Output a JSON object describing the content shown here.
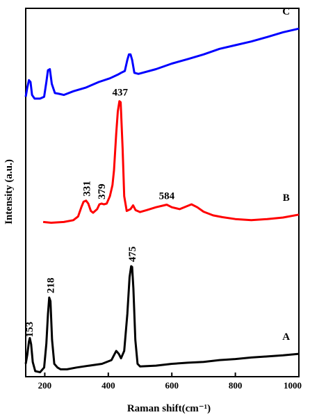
{
  "chart_data": {
    "type": "line",
    "xlabel": "Raman shift(cm⁻¹)",
    "ylabel": "Intensity (a.u.)",
    "xlim": [
      140,
      1000
    ],
    "ylim": [
      0,
      1
    ],
    "x_ticks": [
      "200",
      "400",
      "600",
      "800",
      "1000"
    ],
    "y_ticks": [],
    "grid": false,
    "legend": "none",
    "series": [
      {
        "name": "A",
        "color": "#000000",
        "points": [
          [
            140,
            0.035
          ],
          [
            145,
            0.06
          ],
          [
            150,
            0.095
          ],
          [
            153,
            0.105
          ],
          [
            157,
            0.088
          ],
          [
            162,
            0.04
          ],
          [
            170,
            0.015
          ],
          [
            185,
            0.012
          ],
          [
            198,
            0.025
          ],
          [
            205,
            0.09
          ],
          [
            210,
            0.17
          ],
          [
            214,
            0.215
          ],
          [
            218,
            0.205
          ],
          [
            223,
            0.1
          ],
          [
            230,
            0.035
          ],
          [
            240,
            0.025
          ],
          [
            250,
            0.02
          ],
          [
            270,
            0.02
          ],
          [
            300,
            0.025
          ],
          [
            340,
            0.03
          ],
          [
            380,
            0.035
          ],
          [
            410,
            0.045
          ],
          [
            425,
            0.07
          ],
          [
            433,
            0.062
          ],
          [
            440,
            0.05
          ],
          [
            450,
            0.07
          ],
          [
            460,
            0.17
          ],
          [
            467,
            0.27
          ],
          [
            472,
            0.3
          ],
          [
            475,
            0.298
          ],
          [
            479,
            0.24
          ],
          [
            485,
            0.1
          ],
          [
            492,
            0.035
          ],
          [
            500,
            0.028
          ],
          [
            550,
            0.03
          ],
          [
            600,
            0.035
          ],
          [
            650,
            0.038
          ],
          [
            700,
            0.04
          ],
          [
            750,
            0.045
          ],
          [
            800,
            0.048
          ],
          [
            850,
            0.052
          ],
          [
            900,
            0.055
          ],
          [
            950,
            0.058
          ],
          [
            1000,
            0.062
          ]
        ]
      },
      {
        "name": "B",
        "color": "#ff0000",
        "points": [
          [
            195,
            0.42
          ],
          [
            220,
            0.418
          ],
          [
            260,
            0.42
          ],
          [
            290,
            0.425
          ],
          [
            305,
            0.435
          ],
          [
            315,
            0.46
          ],
          [
            322,
            0.475
          ],
          [
            330,
            0.478
          ],
          [
            337,
            0.47
          ],
          [
            345,
            0.45
          ],
          [
            352,
            0.445
          ],
          [
            365,
            0.455
          ],
          [
            372,
            0.468
          ],
          [
            379,
            0.47
          ],
          [
            386,
            0.468
          ],
          [
            395,
            0.47
          ],
          [
            405,
            0.49
          ],
          [
            413,
            0.52
          ],
          [
            418,
            0.56
          ],
          [
            425,
            0.66
          ],
          [
            430,
            0.72
          ],
          [
            435,
            0.748
          ],
          [
            439,
            0.745
          ],
          [
            445,
            0.62
          ],
          [
            450,
            0.49
          ],
          [
            458,
            0.45
          ],
          [
            470,
            0.455
          ],
          [
            478,
            0.465
          ],
          [
            486,
            0.452
          ],
          [
            500,
            0.447
          ],
          [
            520,
            0.452
          ],
          [
            550,
            0.46
          ],
          [
            575,
            0.465
          ],
          [
            584,
            0.467
          ],
          [
            600,
            0.46
          ],
          [
            625,
            0.455
          ],
          [
            645,
            0.462
          ],
          [
            662,
            0.468
          ],
          [
            680,
            0.46
          ],
          [
            700,
            0.448
          ],
          [
            730,
            0.438
          ],
          [
            760,
            0.433
          ],
          [
            800,
            0.428
          ],
          [
            850,
            0.425
          ],
          [
            900,
            0.428
          ],
          [
            950,
            0.432
          ],
          [
            1000,
            0.44
          ]
        ]
      },
      {
        "name": "C",
        "color": "#0000ff",
        "points": [
          [
            140,
            0.76
          ],
          [
            145,
            0.785
          ],
          [
            150,
            0.805
          ],
          [
            155,
            0.8
          ],
          [
            160,
            0.765
          ],
          [
            168,
            0.755
          ],
          [
            185,
            0.755
          ],
          [
            198,
            0.76
          ],
          [
            205,
            0.8
          ],
          [
            210,
            0.832
          ],
          [
            216,
            0.835
          ],
          [
            222,
            0.795
          ],
          [
            232,
            0.77
          ],
          [
            245,
            0.768
          ],
          [
            260,
            0.765
          ],
          [
            290,
            0.775
          ],
          [
            330,
            0.785
          ],
          [
            370,
            0.8
          ],
          [
            405,
            0.81
          ],
          [
            430,
            0.82
          ],
          [
            440,
            0.825
          ],
          [
            452,
            0.83
          ],
          [
            460,
            0.86
          ],
          [
            465,
            0.875
          ],
          [
            470,
            0.875
          ],
          [
            475,
            0.86
          ],
          [
            482,
            0.825
          ],
          [
            495,
            0.822
          ],
          [
            550,
            0.835
          ],
          [
            600,
            0.85
          ],
          [
            650,
            0.862
          ],
          [
            700,
            0.875
          ],
          [
            750,
            0.89
          ],
          [
            800,
            0.9
          ],
          [
            850,
            0.91
          ],
          [
            900,
            0.922
          ],
          [
            950,
            0.935
          ],
          [
            1000,
            0.945
          ]
        ]
      }
    ],
    "series_labels": [
      "A",
      "B",
      "C"
    ],
    "annotations": [
      {
        "text": "153",
        "x": 153,
        "y": 0.105
      },
      {
        "text": "218",
        "x": 218,
        "y": 0.215
      },
      {
        "text": "475",
        "x": 475,
        "y": 0.3
      },
      {
        "text": "331",
        "x": 331,
        "y": 0.478
      },
      {
        "text": "379",
        "x": 379,
        "y": 0.47
      },
      {
        "text": "437",
        "x": 437,
        "y": 0.748
      },
      {
        "text": "584",
        "x": 584,
        "y": 0.467
      }
    ]
  }
}
